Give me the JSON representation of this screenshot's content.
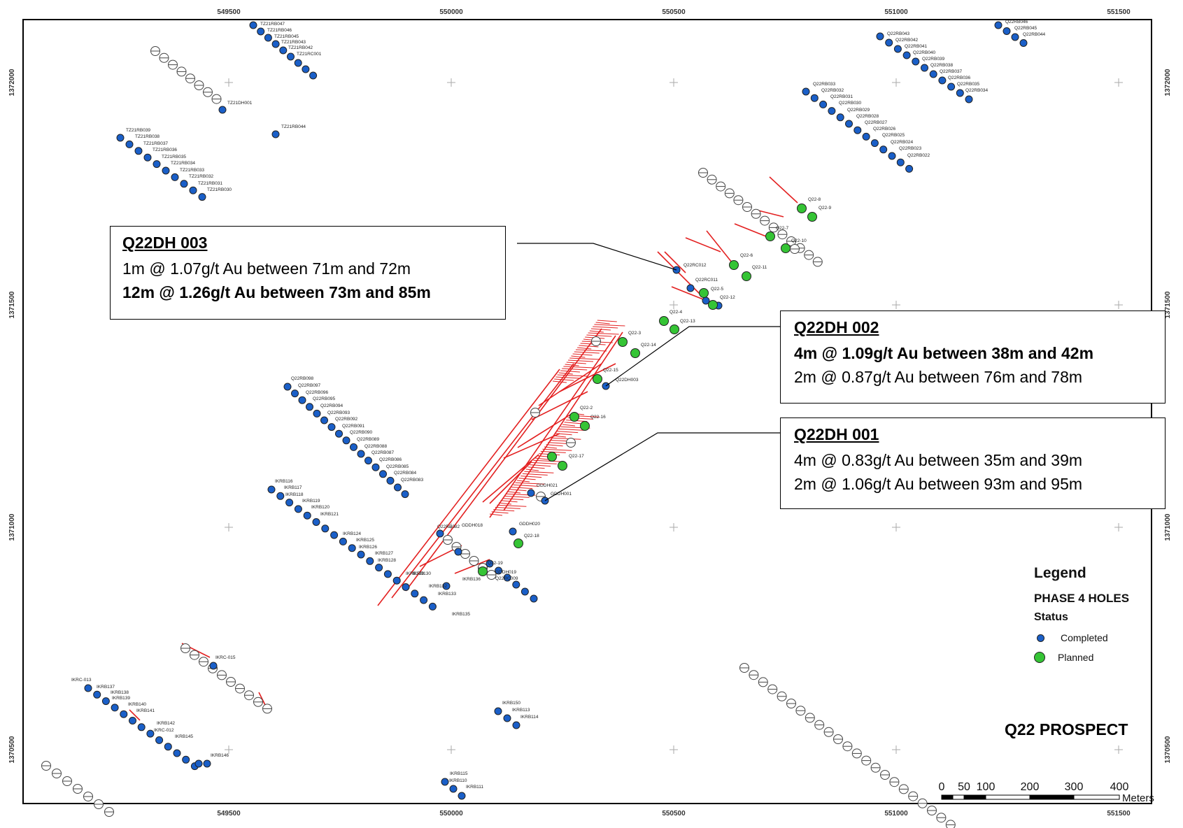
{
  "axes": {
    "x_ticks": [
      "549500",
      "550000",
      "550500",
      "551000",
      "551500"
    ],
    "y_ticks": [
      "1372000",
      "1371500",
      "1371000",
      "1370500"
    ]
  },
  "callouts": {
    "dh003": {
      "title": "Q22DH 003",
      "line1": "1m @ 1.07g/t Au between 71m and 72m",
      "line2": "12m @ 1.26g/t Au between 73m and 85m"
    },
    "dh002": {
      "title": "Q22DH 002",
      "line1": "4m @ 1.09g/t Au between 38m and 42m",
      "line2": "2m @ 0.87g/t Au between 76m and 78m"
    },
    "dh001": {
      "title": "Q22DH 001",
      "line1": "4m @ 0.83g/t Au between 35m and 39m",
      "line2": "2m @ 1.06g/t Au between 93m and 95m"
    }
  },
  "legend": {
    "title": "Legend",
    "subtitle": "PHASE 4 HOLES",
    "status_label": "Status",
    "items": [
      {
        "label": "Completed",
        "color": "#1a5fc8"
      },
      {
        "label": "Planned",
        "color": "#35c435"
      }
    ]
  },
  "prospect_name": "Q22 PROSPECT",
  "scalebar": {
    "labels": [
      "0",
      "50",
      "100",
      "200",
      "300",
      "400"
    ],
    "unit": "Meters"
  },
  "colors": {
    "completed": "#1a5fc8",
    "planned": "#35c435",
    "trace": "#e32020",
    "frame": "#000000"
  },
  "holes": {
    "labels": [
      "TZ21RB047",
      "TZ21RB046",
      "TZ21RB045",
      "TZ21RB043",
      "TZ21RB042",
      "TZ21RC001",
      "TZ21DH001",
      "TZ21RB044",
      "TZ21RB039",
      "TZ21RB038",
      "TZ21RB037",
      "TZ21RB036",
      "TZ21RB035",
      "TZ21RB034",
      "TZ21RB033",
      "TZ21RB032",
      "TZ21RB031",
      "TZ21RB030",
      "Q22RB043",
      "Q22RB042",
      "Q22RB041",
      "Q22RB040",
      "Q22RB039",
      "Q22RB038",
      "Q22RB037",
      "Q22RB036",
      "Q22RB035",
      "Q22RB034",
      "Q22RB046",
      "Q22RB045",
      "Q22RB044",
      "Q22RB033",
      "Q22RB032",
      "Q22RB031",
      "Q22RB030",
      "Q22RB029",
      "Q22RB028",
      "Q22RB027",
      "Q22RB026",
      "Q22RB025",
      "Q22RB024",
      "Q22RB023",
      "Q22RB022",
      "Q22-8",
      "Q22-9",
      "Q22-7",
      "Q22-10",
      "Q22-6",
      "Q22-11",
      "Q22RC012",
      "Q22RC011",
      "Q22-5",
      "Q22-12",
      "Q22-4",
      "Q22-13",
      "Q22-3",
      "Q22-14",
      "Q22-15",
      "Q22DH003",
      "Q22-2",
      "Q22-16",
      "Q22-17",
      "GDDH021",
      "GDDH001",
      "GDDH020",
      "Q22-18",
      "GDDH018",
      "Q22-19",
      "GDDH019",
      "Q22RC009",
      "Q22RB082",
      "Q22RB098",
      "Q22RB097",
      "Q22RB096",
      "Q22RB095",
      "Q22RB094",
      "Q22RB093",
      "Q22RB092",
      "Q22RB091",
      "Q22RB090",
      "Q22RB089",
      "Q22RB088",
      "Q22RB087",
      "Q22RB086",
      "Q22RB085",
      "Q22RB084",
      "Q22RB083",
      "IKRB116",
      "IKRB117",
      "IKRB118",
      "IKRB119",
      "IKRB120",
      "IKRB121",
      "IKRB124",
      "IKRB125",
      "IKRB126",
      "IKRB127",
      "IKRB128",
      "IKRB129",
      "IKRB130",
      "IKRB132",
      "IKRB133",
      "IKRB135",
      "IKRB136",
      "IKRC-015",
      "IKRC-013",
      "IKRB137",
      "IKRB138",
      "IKRB139",
      "IKRB140",
      "IKRB141",
      "IKRB142",
      "IKRC-012",
      "IKRB145",
      "IKRB146",
      "IKRB150",
      "IKRB113",
      "IKRB114",
      "IKRB115",
      "IKRB110",
      "IKRB111",
      "IKRB112"
    ]
  }
}
